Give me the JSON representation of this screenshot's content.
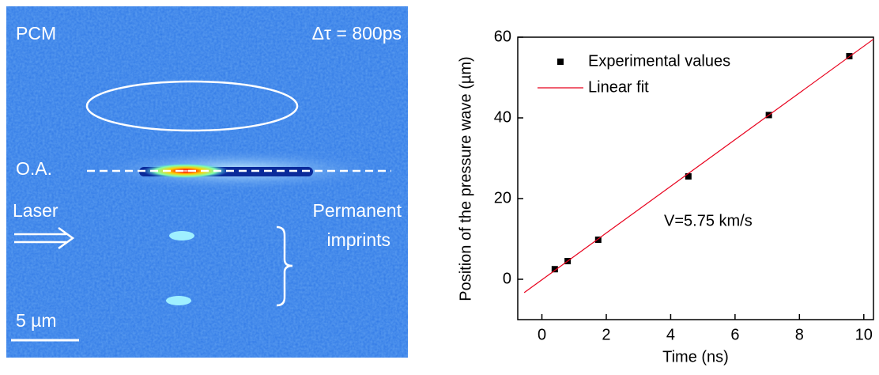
{
  "image_labels": {
    "sample": "PCM",
    "delay": "Δτ = 800ps",
    "axis": "O.A.",
    "laser": "Laser",
    "imprints_line1": "Permanent",
    "imprints_line2": "imprints",
    "scale": "5 µm"
  },
  "chart_data": {
    "type": "scatter",
    "x_label": "Time (ns)",
    "y_label": "Position of the pressure wave (µm)",
    "annotation": "V=5.75 km/s",
    "xlim": [
      -0.75,
      10.3
    ],
    "ylim": [
      -10,
      60
    ],
    "xticks": [
      0,
      2,
      4,
      6,
      8,
      10
    ],
    "yticks": [
      0,
      20,
      40,
      60
    ],
    "legend": "upper left",
    "series": [
      {
        "name": "Experimental values",
        "type": "scatter",
        "color": "#000000",
        "x": [
          0.4,
          0.8,
          1.75,
          4.55,
          7.05,
          9.55
        ],
        "values": [
          2.5,
          4.5,
          9.8,
          25.5,
          40.7,
          55.3
        ]
      },
      {
        "name": "Linear fit",
        "type": "line",
        "color": "#e8001c",
        "x": [
          -0.55,
          10.3
        ],
        "values": [
          -3.3,
          59.5
        ]
      }
    ]
  }
}
